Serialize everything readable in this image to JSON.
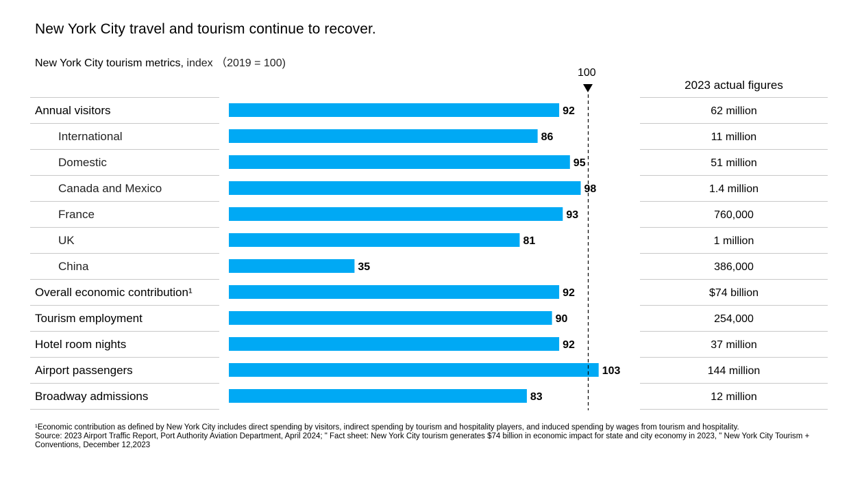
{
  "title": "New York City travel and tourism continue to recover.",
  "subtitle_main": "New York City tourism metrics,",
  "subtitle_unit": " index （2019 = 100)",
  "marker_label": "100",
  "actual_header": "2023 actual figures",
  "chart_data": {
    "type": "bar",
    "orientation": "horizontal",
    "reference_line": 100,
    "xlim": [
      0,
      112
    ],
    "categories": [
      "Annual visitors",
      "International",
      "Domestic",
      "Canada and Mexico",
      "France",
      "UK",
      "China",
      "Overall economic contribution¹",
      "Tourism employment",
      "Hotel room nights",
      "Airport passengers",
      "Broadway admissions"
    ],
    "indented": [
      false,
      true,
      true,
      true,
      true,
      true,
      true,
      false,
      false,
      false,
      false,
      false
    ],
    "values": [
      92,
      86,
      95,
      98,
      93,
      81,
      35,
      92,
      90,
      92,
      103,
      83
    ],
    "value_labels": [
      "92",
      "86",
      "95",
      "98",
      "93",
      "81",
      "35",
      "92",
      "90",
      "92",
      "103",
      "83"
    ],
    "actual_figures": [
      "62 million",
      "11 million",
      "51 million",
      "1.4 million",
      "760,000",
      "1 million",
      "386,000",
      "$74 billion",
      "254,000",
      "37 million",
      "144 million",
      "12 million"
    ],
    "bar_color": "#00A9F4"
  },
  "footnotes": {
    "line1": "¹Economic contribution as defined by New York City includes direct spending by visitors, indirect spending by tourism and hospitality players, and induced spending by wages from tourism and hospitality.",
    "line2": "Source: 2023 Airport Traffic Report, Port Authority Aviation Department, April 2024;  \" Fact sheet: New York City tourism generates $74 billion in economic impact for state and city economy in 2023, \" New York City Tourism + Conventions, December 12,2023"
  }
}
